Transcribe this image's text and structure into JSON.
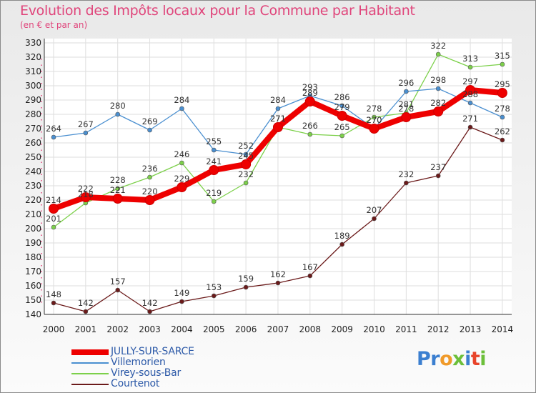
{
  "title": "Evolution des Impôts locaux pour la Commune par Habitant",
  "subtitle": "(en € et par an)",
  "logo": {
    "parts": [
      "Pr",
      "o",
      "x",
      "i",
      "t",
      "i"
    ]
  },
  "chart_data": {
    "type": "line",
    "title": "Evolution des Impôts locaux pour la Commune par Habitant",
    "subtitle": "(en € et par an)",
    "x": [
      "2000",
      "2001",
      "2002",
      "2003",
      "2004",
      "2005",
      "2006",
      "2007",
      "2008",
      "2009",
      "2010",
      "2011",
      "2012",
      "2013",
      "2014"
    ],
    "ylim": [
      140,
      330
    ],
    "yticks": [
      140,
      150,
      160,
      170,
      180,
      190,
      200,
      210,
      220,
      230,
      240,
      250,
      260,
      270,
      280,
      290,
      300,
      310,
      320,
      330
    ],
    "grid": true,
    "legend_position": "bottom-left",
    "series": [
      {
        "name": "JULLY-SUR-SARCE",
        "color": "#ee0000",
        "emphasis": true,
        "values": [
          214,
          222,
          221,
          220,
          229,
          241,
          245,
          271,
          289,
          279,
          270,
          278,
          282,
          297,
          295
        ],
        "labels": [
          "214",
          "222",
          "221",
          "220",
          "229",
          "241",
          "245",
          "271",
          "289",
          "279",
          "270",
          "278",
          "282",
          "297",
          "295"
        ]
      },
      {
        "name": "Villemorien",
        "color": "#4a8fd0",
        "values": [
          264,
          267,
          280,
          269,
          284,
          255,
          252,
          284,
          293,
          286,
          270,
          296,
          298,
          288,
          278
        ],
        "labels": [
          "264",
          "267",
          "280",
          "269",
          "284",
          "255",
          "252",
          "284",
          "293",
          "286",
          "270",
          "296",
          "298",
          "288",
          "278"
        ]
      },
      {
        "name": "Virey-sous-Bar",
        "color": "#7cd04a",
        "values": [
          201,
          218,
          228,
          236,
          246,
          219,
          232,
          271,
          266,
          265,
          278,
          281,
          322,
          313,
          315
        ],
        "labels": [
          "201",
          "218",
          "228",
          "236",
          "246",
          "219",
          "232",
          "271",
          "266",
          "265",
          "278",
          "281",
          "322",
          "313",
          "315"
        ]
      },
      {
        "name": "Courtenot",
        "color": "#6b1a1a",
        "values": [
          148,
          142,
          157,
          142,
          149,
          153,
          159,
          162,
          167,
          189,
          207,
          232,
          237,
          271,
          262
        ],
        "labels": [
          "148",
          "142",
          "157",
          "142",
          "149",
          "153",
          "159",
          "162",
          "167",
          "189",
          "207",
          "232",
          "237",
          "271",
          "262"
        ]
      }
    ]
  }
}
